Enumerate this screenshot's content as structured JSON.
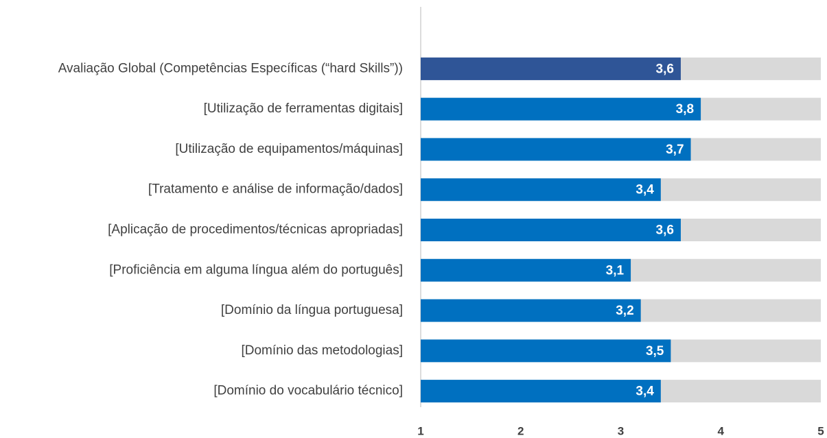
{
  "chart_data": {
    "type": "barh",
    "categories": [
      "Avaliação Global (Competências Específicas (“hard Skills”))",
      "[Utilização de ferramentas digitais]",
      "[Utilização de equipamentos/máquinas]",
      "[Tratamento e análise de informação/dados]",
      "[Aplicação de procedimentos/técnicas apropriadas]",
      "[Proficiência em alguma língua além do português]",
      "[Domínio da língua portuguesa]",
      "[Domínio das metodologias]",
      "[Domínio do vocabulário técnico]"
    ],
    "values": [
      3.6,
      3.8,
      3.7,
      3.4,
      3.6,
      3.1,
      3.2,
      3.5,
      3.4
    ],
    "value_labels": [
      "3,6",
      "3,8",
      "3,7",
      "3,4",
      "3,6",
      "3,1",
      "3,2",
      "3,5",
      "3,4"
    ],
    "colors": [
      "#2f5597",
      "#0070c0",
      "#0070c0",
      "#0070c0",
      "#0070c0",
      "#0070c0",
      "#0070c0",
      "#0070c0",
      "#0070c0"
    ],
    "track_color": "#d9d9d9",
    "xlim": [
      1,
      5
    ],
    "xticks": [
      1,
      2,
      3,
      4,
      5
    ]
  }
}
